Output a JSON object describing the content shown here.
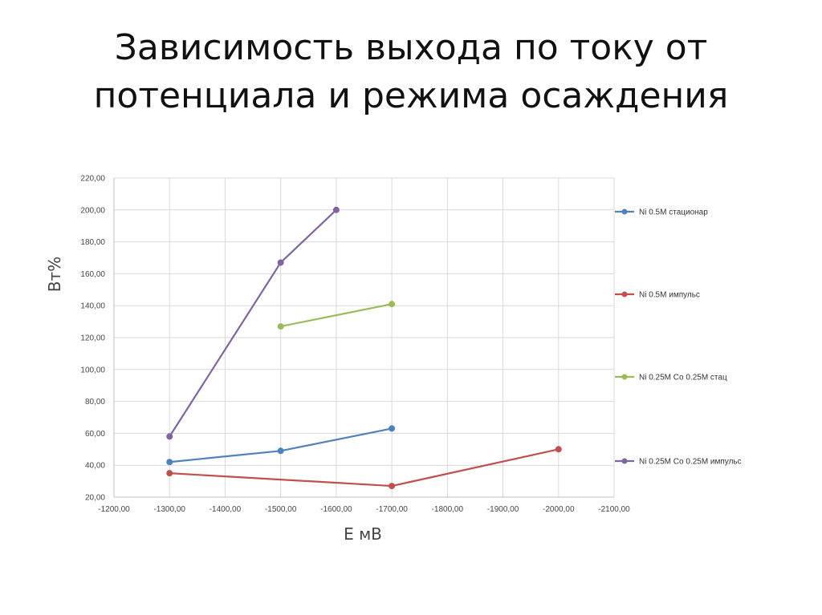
{
  "slide": {
    "title_line1": "Зависимость выхода по току от",
    "title_line2": "потенциала и режима осаждения"
  },
  "chart_data": {
    "type": "line",
    "xlabel": "Е мВ",
    "ylabel": "Вт%",
    "xlim": [
      -1200,
      -2100
    ],
    "ylim": [
      20,
      220
    ],
    "x_ticks": [
      "-1200,00",
      "-1300,00",
      "-1400,00",
      "-1500,00",
      "-1600,00",
      "-1700,00",
      "-1800,00",
      "-1900,00",
      "-2000,00",
      "-2100,00"
    ],
    "y_ticks": [
      "20,00",
      "40,00",
      "60,00",
      "80,00",
      "100,00",
      "120,00",
      "140,00",
      "160,00",
      "180,00",
      "200,00",
      "220,00"
    ],
    "grid": true,
    "legend_position": "right",
    "series": [
      {
        "name": "Ni 0.5M стационар",
        "color": "#4f81bd",
        "points": [
          [
            -1300,
            42
          ],
          [
            -1500,
            49
          ],
          [
            -1700,
            63
          ]
        ]
      },
      {
        "name": "Ni 0.5M импульс",
        "color": "#c0504d",
        "points": [
          [
            -1300,
            35
          ],
          [
            -1700,
            27
          ],
          [
            -2000,
            50
          ]
        ]
      },
      {
        "name": "Ni 0.25M Co 0.25M стац",
        "color": "#9bbb59",
        "points": [
          [
            -1500,
            127
          ],
          [
            -1700,
            141
          ]
        ]
      },
      {
        "name": "Ni 0.25M Co 0.25M импульс",
        "color": "#8064a2",
        "points": [
          [
            -1300,
            58
          ],
          [
            -1500,
            167
          ],
          [
            -1600,
            200
          ]
        ]
      }
    ]
  }
}
